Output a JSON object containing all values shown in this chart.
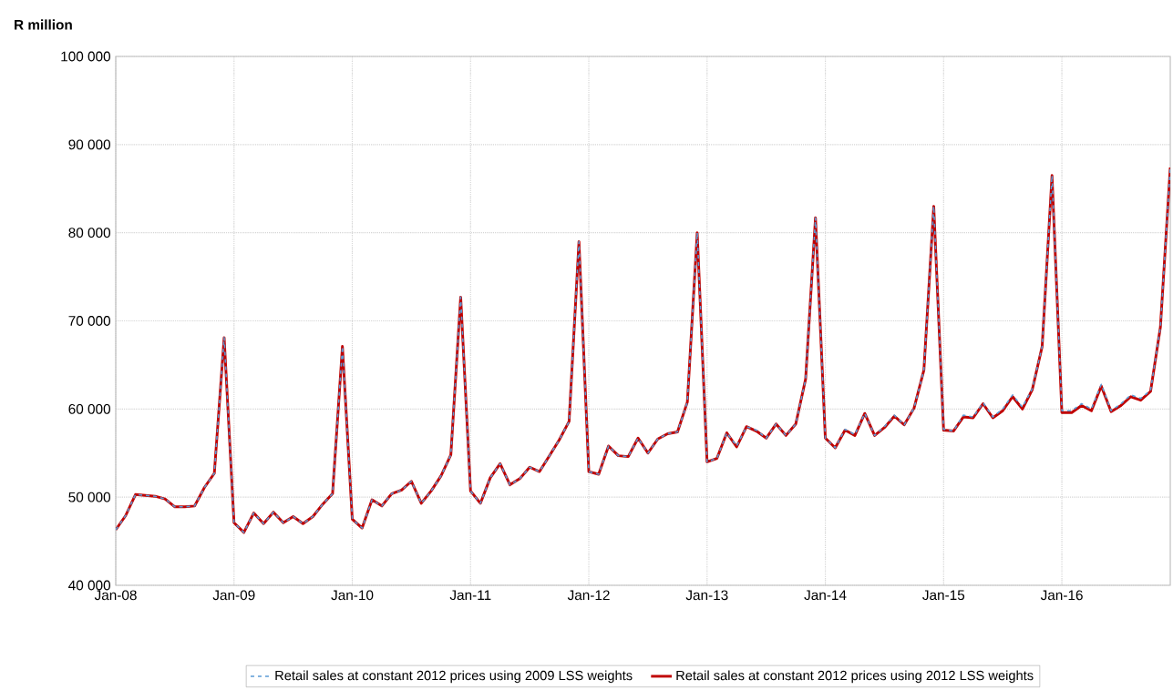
{
  "chart_data": {
    "type": "line",
    "ylabel": "R million",
    "x": [
      "2008-01",
      "2008-02",
      "2008-03",
      "2008-04",
      "2008-05",
      "2008-06",
      "2008-07",
      "2008-08",
      "2008-09",
      "2008-10",
      "2008-11",
      "2008-12",
      "2009-01",
      "2009-02",
      "2009-03",
      "2009-04",
      "2009-05",
      "2009-06",
      "2009-07",
      "2009-08",
      "2009-09",
      "2009-10",
      "2009-11",
      "2009-12",
      "2010-01",
      "2010-02",
      "2010-03",
      "2010-04",
      "2010-05",
      "2010-06",
      "2010-07",
      "2010-08",
      "2010-09",
      "2010-10",
      "2010-11",
      "2010-12",
      "2011-01",
      "2011-02",
      "2011-03",
      "2011-04",
      "2011-05",
      "2011-06",
      "2011-07",
      "2011-08",
      "2011-09",
      "2011-10",
      "2011-11",
      "2011-12",
      "2012-01",
      "2012-02",
      "2012-03",
      "2012-04",
      "2012-05",
      "2012-06",
      "2012-07",
      "2012-08",
      "2012-09",
      "2012-10",
      "2012-11",
      "2012-12",
      "2013-01",
      "2013-02",
      "2013-03",
      "2013-04",
      "2013-05",
      "2013-06",
      "2013-07",
      "2013-08",
      "2013-09",
      "2013-10",
      "2013-11",
      "2013-12",
      "2014-01",
      "2014-02",
      "2014-03",
      "2014-04",
      "2014-05",
      "2014-06",
      "2014-07",
      "2014-08",
      "2014-09",
      "2014-10",
      "2014-11",
      "2014-12",
      "2015-01",
      "2015-02",
      "2015-03",
      "2015-04",
      "2015-05",
      "2015-06",
      "2015-07",
      "2015-08",
      "2015-09",
      "2015-10",
      "2015-11",
      "2015-12",
      "2016-01",
      "2016-02",
      "2016-03",
      "2016-04",
      "2016-05",
      "2016-06",
      "2016-07",
      "2016-08",
      "2016-09",
      "2016-10",
      "2016-11",
      "2016-12"
    ],
    "series": [
      {
        "name": "Retail sales at constant 2012 prices using 2009 LSS weights",
        "color": "#5b9bd5",
        "line_style": "dashed",
        "values": [
          46300,
          47900,
          50300,
          50200,
          50100,
          49800,
          48900,
          48900,
          49000,
          51100,
          52700,
          68100,
          47100,
          46000,
          48200,
          47000,
          48300,
          47100,
          47800,
          47000,
          47800,
          49200,
          50400,
          67100,
          47500,
          46500,
          49700,
          49000,
          50400,
          50800,
          51800,
          49300,
          50700,
          52400,
          54800,
          72700,
          50700,
          49300,
          52200,
          53800,
          51400,
          52100,
          53400,
          52900,
          54700,
          56500,
          58600,
          79000,
          52900,
          52600,
          55800,
          54700,
          54600,
          56700,
          55000,
          56600,
          57200,
          57400,
          60800,
          80000,
          54000,
          54400,
          57300,
          55800,
          58000,
          57600,
          56700,
          58300,
          57000,
          58300,
          63400,
          81700,
          56700,
          55600,
          57700,
          57100,
          59500,
          57000,
          58000,
          59300,
          58200,
          60100,
          64400,
          83000,
          57700,
          57500,
          59300,
          59100,
          60700,
          59100,
          60000,
          61600,
          60200,
          62300,
          67100,
          86500,
          59800,
          59800,
          60600,
          60000,
          62800,
          59800,
          60600,
          61600,
          61200,
          62100,
          69300,
          87400
        ]
      },
      {
        "name": "Retail sales at constant 2012 prices using 2012 LSS weights",
        "color": "#c00000",
        "line_style": "solid",
        "values": [
          46300,
          47900,
          50300,
          50200,
          50100,
          49800,
          48900,
          48900,
          49000,
          51100,
          52700,
          68100,
          47100,
          46000,
          48200,
          47000,
          48300,
          47100,
          47800,
          47000,
          47800,
          49200,
          50400,
          67100,
          47500,
          46500,
          49700,
          49000,
          50400,
          50800,
          51800,
          49300,
          50700,
          52400,
          54800,
          72700,
          50700,
          49300,
          52200,
          53800,
          51400,
          52100,
          53400,
          52900,
          54700,
          56500,
          58600,
          79000,
          52900,
          52600,
          55800,
          54700,
          54600,
          56700,
          55000,
          56600,
          57200,
          57400,
          60800,
          80000,
          54000,
          54400,
          57300,
          55700,
          58000,
          57500,
          56700,
          58300,
          57000,
          58300,
          63400,
          81700,
          56700,
          55600,
          57600,
          57000,
          59500,
          57000,
          57900,
          59200,
          58200,
          60100,
          64400,
          83000,
          57600,
          57500,
          59100,
          59000,
          60600,
          59000,
          59800,
          61400,
          60000,
          62200,
          67100,
          86500,
          59600,
          59600,
          60400,
          59800,
          62600,
          59700,
          60400,
          61400,
          61000,
          62000,
          69300,
          87400
        ]
      }
    ],
    "xlim": [
      "2008-01",
      "2016-12"
    ],
    "xticks": [
      {
        "value": "2008-01",
        "label": "Jan-08"
      },
      {
        "value": "2009-01",
        "label": "Jan-09"
      },
      {
        "value": "2010-01",
        "label": "Jan-10"
      },
      {
        "value": "2011-01",
        "label": "Jan-11"
      },
      {
        "value": "2012-01",
        "label": "Jan-12"
      },
      {
        "value": "2013-01",
        "label": "Jan-13"
      },
      {
        "value": "2014-01",
        "label": "Jan-14"
      },
      {
        "value": "2015-01",
        "label": "Jan-15"
      },
      {
        "value": "2016-01",
        "label": "Jan-16"
      }
    ],
    "ylim": [
      40000,
      100000
    ],
    "yticks": [
      {
        "value": 40000,
        "label": "40 000"
      },
      {
        "value": 50000,
        "label": "50 000"
      },
      {
        "value": 60000,
        "label": "60 000"
      },
      {
        "value": 70000,
        "label": "70 000"
      },
      {
        "value": 80000,
        "label": "80 000"
      },
      {
        "value": 90000,
        "label": "90 000"
      },
      {
        "value": 100000,
        "label": "100 000"
      }
    ],
    "grid": true,
    "legend": "bottom",
    "marker": "none"
  }
}
